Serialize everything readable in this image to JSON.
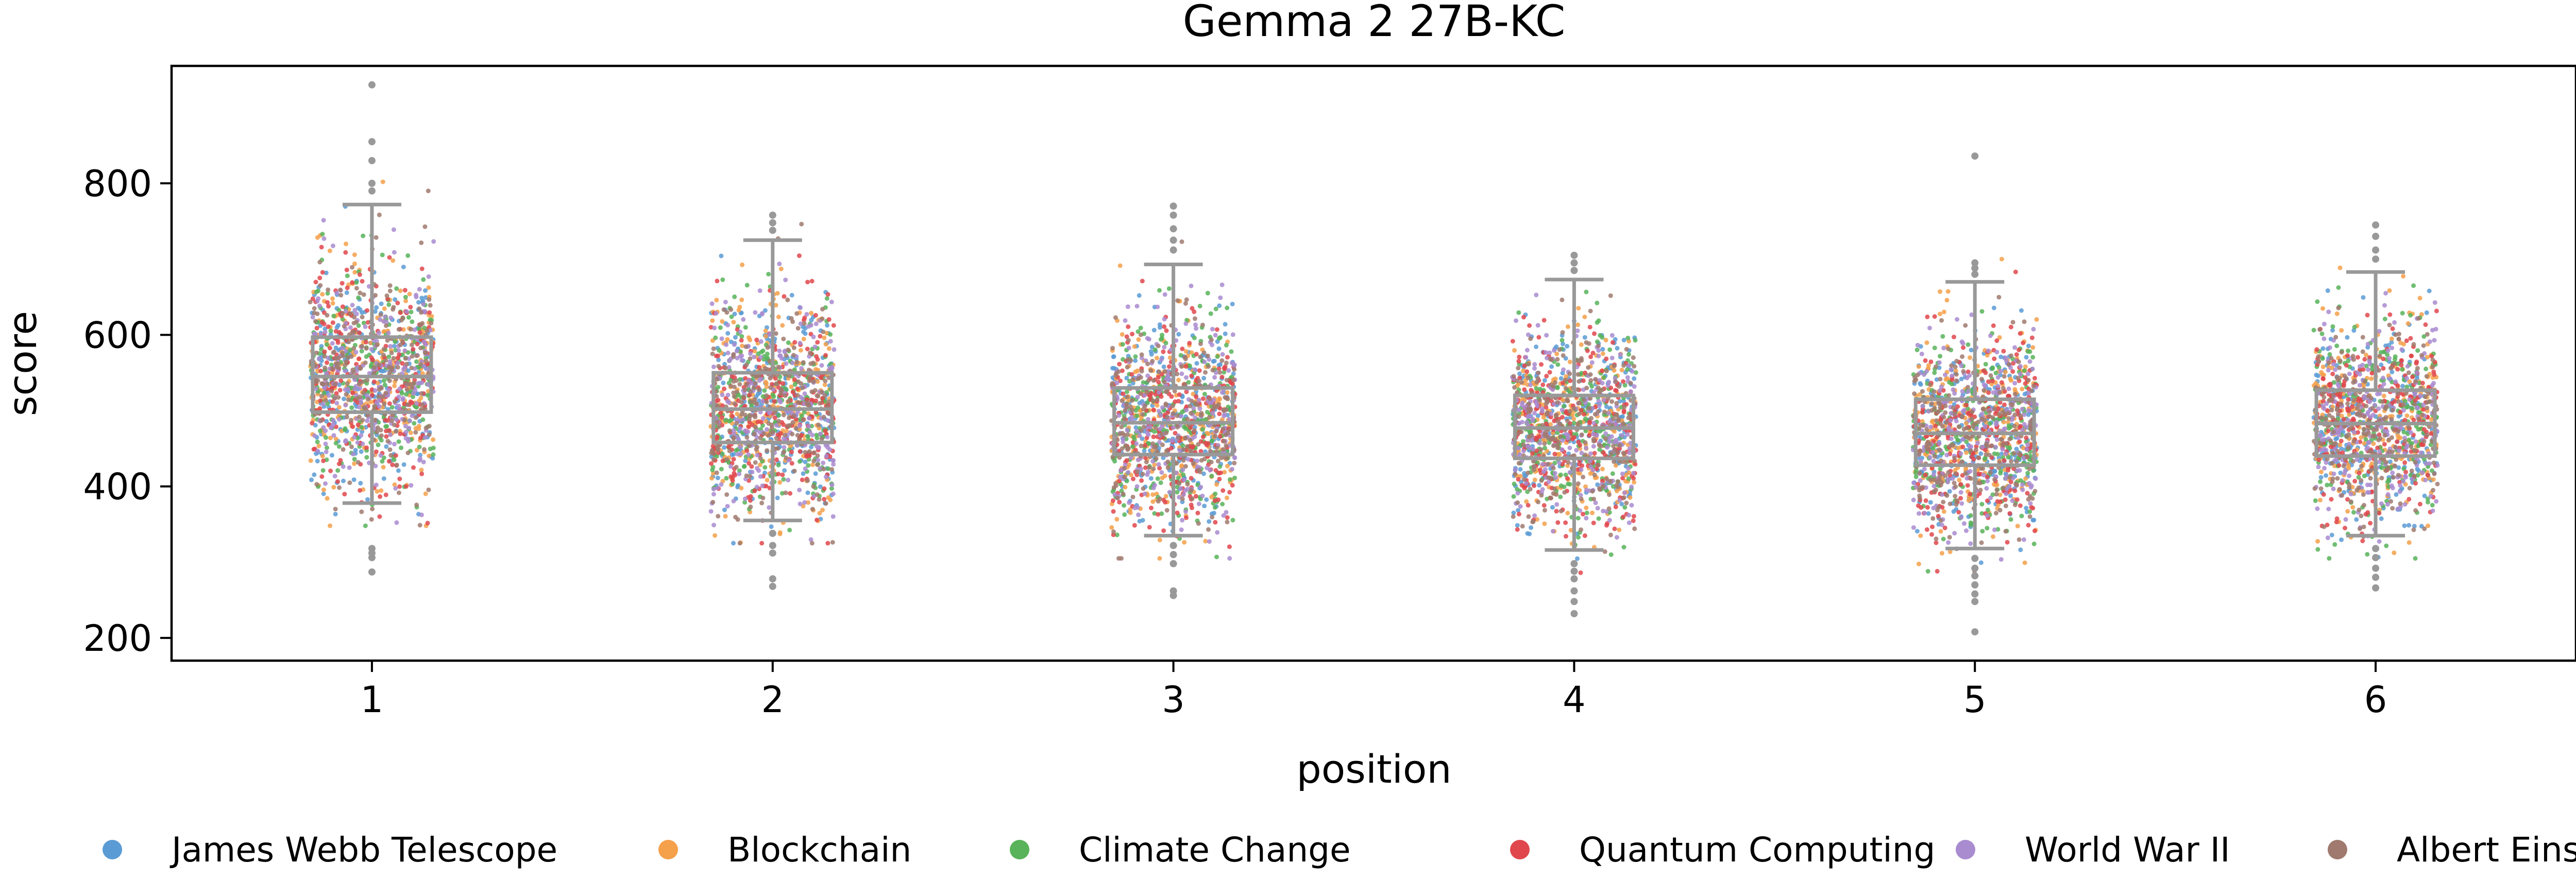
{
  "chart_data": {
    "type": "box-strip",
    "title": "Gemma 2 27B-KC",
    "xlabel": "position",
    "ylabel": "score",
    "categories": [
      "1",
      "2",
      "3",
      "4",
      "5",
      "6"
    ],
    "ylim": [
      170,
      955
    ],
    "yticks": [
      200,
      400,
      600,
      800
    ],
    "grid": false,
    "legend_position": "bottom",
    "box_color": "#999999",
    "boxes": [
      {
        "category": "1",
        "q1": 498,
        "median": 545,
        "q3": 597,
        "whisker_low": 378,
        "whisker_high": 772,
        "outliers": [
          287,
          306,
          312,
          318,
          790,
          800,
          830,
          855,
          930
        ]
      },
      {
        "category": "2",
        "q1": 458,
        "median": 502,
        "q3": 550,
        "whisker_low": 355,
        "whisker_high": 725,
        "outliers": [
          268,
          278,
          312,
          322,
          338,
          738,
          748,
          758
        ]
      },
      {
        "category": "3",
        "q1": 442,
        "median": 484,
        "q3": 530,
        "whisker_low": 335,
        "whisker_high": 693,
        "outliers": [
          256,
          262,
          298,
          310,
          322,
          712,
          725,
          740,
          758,
          770
        ]
      },
      {
        "category": "4",
        "q1": 437,
        "median": 477,
        "q3": 520,
        "whisker_low": 316,
        "whisker_high": 673,
        "outliers": [
          232,
          248,
          262,
          278,
          288,
          298,
          685,
          695,
          705
        ]
      },
      {
        "category": "5",
        "q1": 428,
        "median": 470,
        "q3": 515,
        "whisker_low": 318,
        "whisker_high": 670,
        "outliers": [
          208,
          248,
          258,
          270,
          282,
          292,
          305,
          680,
          688,
          695,
          836
        ]
      },
      {
        "category": "6",
        "q1": 440,
        "median": 483,
        "q3": 527,
        "whisker_low": 335,
        "whisker_high": 683,
        "outliers": [
          266,
          280,
          292,
          306,
          318,
          700,
          712,
          730,
          745
        ]
      }
    ],
    "series": [
      {
        "name": "James Webb Telescope",
        "color": "#5b9bd5"
      },
      {
        "name": "Blockchain",
        "color": "#f5a04a"
      },
      {
        "name": "Climate Change",
        "color": "#58b35a"
      },
      {
        "name": "Quantum Computing",
        "color": "#e0474c"
      },
      {
        "name": "World War II",
        "color": "#a98bd0"
      },
      {
        "name": "Albert Einstein",
        "color": "#a07a6e"
      }
    ]
  }
}
